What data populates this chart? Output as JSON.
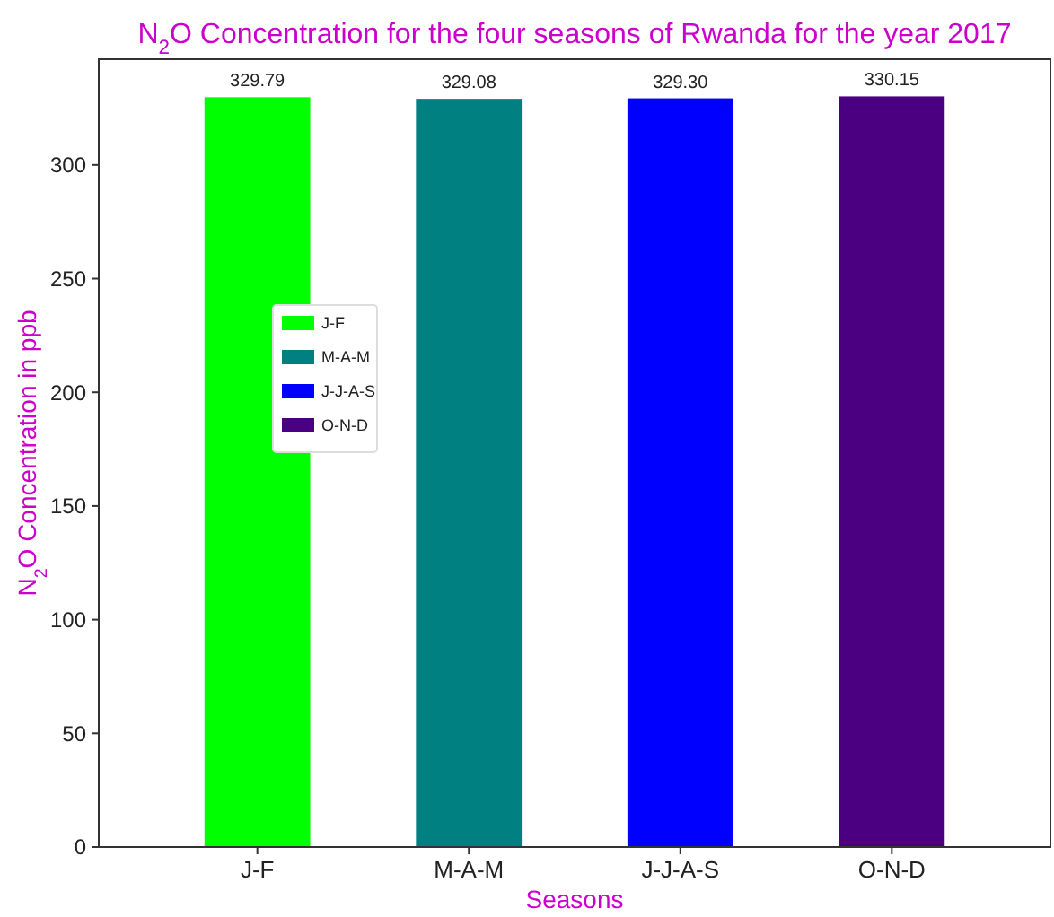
{
  "chart_data": {
    "type": "bar",
    "title": "N$_{2}$O Concentration for the four seasons of Rwanda for the year 2017",
    "xlabel": "Seasons",
    "ylabel": "N$_{2}$O Concentration in ppb",
    "categories": [
      "J-F",
      "M-A-M",
      "J-J-A-S",
      "O-N-D"
    ],
    "series": [
      {
        "name": "J-F",
        "color": "#00ff00",
        "values": [
          329.79,
          null,
          null,
          null
        ],
        "value_labels": [
          "329.79",
          null,
          null,
          null
        ]
      },
      {
        "name": "M-A-M",
        "color": "#008080",
        "values": [
          null,
          329.08,
          null,
          null
        ],
        "value_labels": [
          null,
          "329.08",
          null,
          null
        ]
      },
      {
        "name": "J-J-A-S",
        "color": "#0000ff",
        "values": [
          null,
          null,
          329.3,
          null
        ],
        "value_labels": [
          null,
          null,
          "329.30",
          null
        ]
      },
      {
        "name": "O-N-D",
        "color": "#4b0082",
        "values": [
          null,
          null,
          null,
          330.15
        ],
        "value_labels": [
          null,
          null,
          null,
          "330.15"
        ]
      }
    ],
    "ylim": [
      0,
      346.5
    ],
    "yticks": [
      0,
      50,
      100,
      150,
      200,
      250,
      300
    ],
    "grid": false,
    "legend": "left"
  }
}
